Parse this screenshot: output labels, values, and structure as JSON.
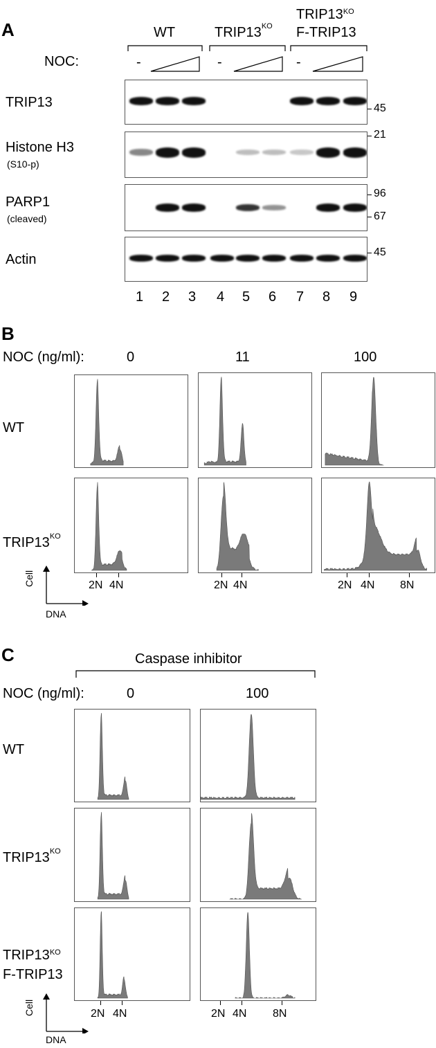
{
  "panel_a": {
    "letter": "A",
    "groups": [
      {
        "label": "WT",
        "sup": ""
      },
      {
        "label": "TRIP13",
        "sup": "KO"
      },
      {
        "label": "TRIP13",
        "sup": "KO",
        "line2": "F-TRIP13"
      }
    ],
    "noc_label": "NOC:",
    "minus": "-",
    "rows": [
      {
        "name": "TRIP13",
        "sub": ""
      },
      {
        "name": "Histone H3",
        "sub": "(S10-p)"
      },
      {
        "name": "PARP1",
        "sub": "(cleaved)"
      },
      {
        "name": "Actin",
        "sub": ""
      }
    ],
    "markers": [
      "45",
      "21",
      "96",
      "67",
      "45"
    ],
    "lanes": [
      "1",
      "2",
      "3",
      "4",
      "5",
      "6",
      "7",
      "8",
      "9"
    ],
    "band_intensity": {
      "TRIP13": [
        1,
        1,
        1,
        0,
        0,
        0,
        1,
        1,
        1
      ],
      "Histone H3": [
        0.35,
        1,
        1,
        0,
        0.12,
        0.12,
        0.08,
        1,
        1
      ],
      "PARP1": [
        0,
        1,
        1,
        0,
        0.7,
        0.3,
        0,
        1,
        1
      ],
      "Actin": [
        1,
        1,
        1,
        1,
        1,
        1,
        1,
        1,
        1
      ]
    }
  },
  "panel_b": {
    "letter": "B",
    "noc_label": "NOC (ng/ml):",
    "concentrations": [
      "0",
      "11",
      "100"
    ],
    "row_labels": [
      {
        "label": "WT",
        "sup": ""
      },
      {
        "label": "TRIP13",
        "sup": "KO"
      }
    ],
    "axis": {
      "y": "Cell",
      "x": "DNA"
    },
    "tick_labels": {
      "2n": "2N",
      "4n": "4N",
      "8n": "8N"
    }
  },
  "panel_c": {
    "letter": "C",
    "bracket_label": "Caspase inhibitor",
    "noc_label": "NOC (ng/ml):",
    "concentrations": [
      "0",
      "100"
    ],
    "row_labels": [
      {
        "label": "WT",
        "sup": "",
        "line2": ""
      },
      {
        "label": "TRIP13",
        "sup": "KO",
        "line2": ""
      },
      {
        "label": "TRIP13",
        "sup": "KO",
        "line2": "F-TRIP13"
      }
    ],
    "axis": {
      "y": "Cell",
      "x": "DNA"
    },
    "tick_labels": {
      "2n": "2N",
      "4n": "4N",
      "8n": "8N"
    }
  },
  "colors": {
    "histogram_fill": "#7a7a7a",
    "band": "#111111",
    "frame": "#555555"
  }
}
